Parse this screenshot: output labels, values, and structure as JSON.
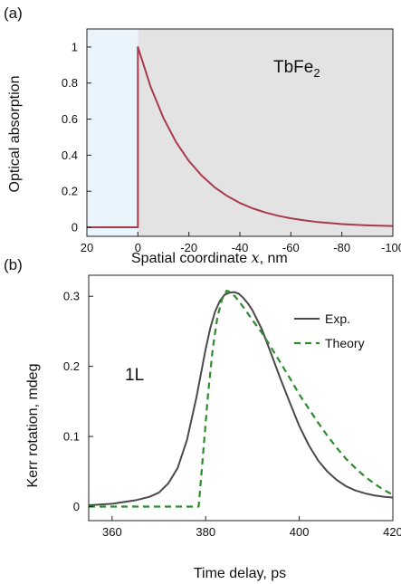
{
  "chart_data": [
    {
      "panel_label": "(a)",
      "type": "line",
      "xlabel": "Spatial coordinate",
      "xlabel_var": "x",
      "xlabel_unit": ", nm",
      "ylabel": "Optical absorption",
      "xlim": [
        20,
        -100
      ],
      "ylim": [
        -0.05,
        1.1
      ],
      "x_ticks": [
        20,
        0,
        -20,
        -40,
        -60,
        -80,
        -100
      ],
      "x_tick_labels": [
        "20",
        "0",
        "-20",
        "-40",
        "-60",
        "-80",
        "-100"
      ],
      "y_ticks": [
        0,
        0.2,
        0.4,
        0.6,
        0.8,
        1
      ],
      "y_tick_labels": [
        "0",
        "0.2",
        "0.4",
        "0.6",
        "0.8",
        "1"
      ],
      "annotation": {
        "text": "TbFe",
        "subscript": "2"
      },
      "regions": [
        {
          "name": "outside",
          "x_range": [
            20,
            0
          ],
          "color": "#eaf4fd"
        },
        {
          "name": "material",
          "x_range": [
            0,
            -100
          ],
          "color": "#e3e3e3"
        }
      ],
      "series": [
        {
          "color": "#a83a4c",
          "style": "solid",
          "x": [
            20,
            0,
            0,
            -5,
            -10,
            -15,
            -20,
            -25,
            -30,
            -35,
            -40,
            -45,
            -50,
            -55,
            -60,
            -65,
            -70,
            -75,
            -80,
            -85,
            -90,
            -95,
            -100
          ],
          "y": [
            0,
            0,
            1,
            0.779,
            0.607,
            0.472,
            0.368,
            0.287,
            0.223,
            0.174,
            0.135,
            0.105,
            0.082,
            0.064,
            0.05,
            0.039,
            0.03,
            0.024,
            0.018,
            0.014,
            0.011,
            0.009,
            0.007
          ]
        }
      ]
    },
    {
      "panel_label": "(b)",
      "type": "line",
      "xlabel": "Time delay, ps",
      "ylabel": "Kerr rotation, mdeg",
      "xlim": [
        355,
        420
      ],
      "ylim": [
        -0.02,
        0.33
      ],
      "x_ticks": [
        360,
        380,
        400,
        420
      ],
      "x_tick_labels": [
        "360",
        "380",
        "400",
        "420"
      ],
      "y_ticks": [
        0,
        0.1,
        0.2,
        0.3
      ],
      "y_tick_labels": [
        "0",
        "0.1",
        "0.2",
        "0.3"
      ],
      "annotation": {
        "text": "1L"
      },
      "legend_position": "top-right",
      "series": [
        {
          "name": "Exp.",
          "color": "#4a4a4a",
          "style": "solid",
          "x": [
            355,
            360,
            365,
            368,
            370,
            372,
            374,
            376,
            378,
            379,
            380,
            381,
            382,
            383,
            384,
            385,
            386,
            387,
            388,
            389,
            390,
            392,
            394,
            396,
            398,
            400,
            402,
            404,
            406,
            408,
            410,
            412,
            414,
            416,
            418,
            420
          ],
          "y": [
            0.002,
            0.004,
            0.009,
            0.014,
            0.02,
            0.033,
            0.055,
            0.095,
            0.155,
            0.19,
            0.225,
            0.255,
            0.278,
            0.293,
            0.302,
            0.305,
            0.306,
            0.304,
            0.298,
            0.29,
            0.28,
            0.253,
            0.218,
            0.182,
            0.148,
            0.115,
            0.088,
            0.066,
            0.05,
            0.038,
            0.029,
            0.023,
            0.019,
            0.016,
            0.014,
            0.013
          ]
        },
        {
          "name": "Theory",
          "color": "#2e8b2e",
          "style": "dashed",
          "x": [
            355,
            360,
            365,
            370,
            375,
            378.5,
            379.5,
            380.5,
            381.5,
            382.5,
            383.5,
            384.5,
            385.5,
            386.5,
            388,
            390,
            392,
            394,
            396,
            398,
            400,
            402,
            404,
            406,
            408,
            410,
            412,
            414,
            416,
            418,
            420
          ],
          "y": [
            0,
            0,
            0,
            0,
            0,
            0,
            0.08,
            0.16,
            0.225,
            0.27,
            0.296,
            0.308,
            0.305,
            0.298,
            0.285,
            0.266,
            0.248,
            0.227,
            0.205,
            0.183,
            0.16,
            0.14,
            0.12,
            0.101,
            0.084,
            0.068,
            0.055,
            0.043,
            0.033,
            0.024,
            0.017
          ]
        }
      ]
    }
  ]
}
